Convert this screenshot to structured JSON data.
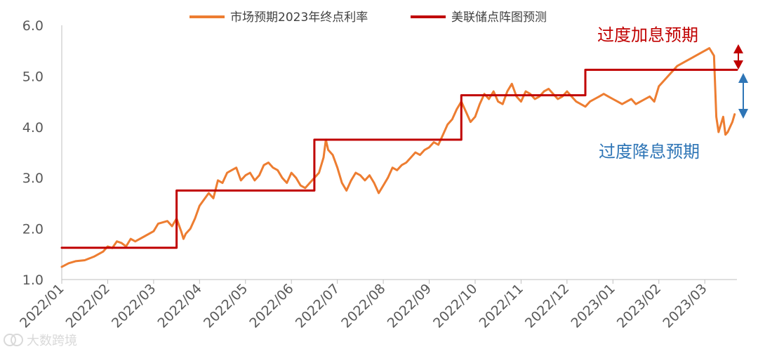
{
  "chart_data": {
    "type": "line",
    "legend": {
      "position": "top",
      "items": [
        {
          "name": "市场预期2023年终点利率",
          "color": "#ed7d31",
          "style": "line"
        },
        {
          "name": "美联储点阵图预测",
          "color": "#c00000",
          "style": "step"
        }
      ]
    },
    "ylim": [
      1.0,
      6.0
    ],
    "yticks": [
      "1.0",
      "2.0",
      "3.0",
      "4.0",
      "5.0",
      "6.0"
    ],
    "xlim": [
      0,
      14.7
    ],
    "xticks": [
      "2022/01",
      "2022/02",
      "2022/03",
      "2022/04",
      "2022/05",
      "2022/06",
      "2022/07",
      "2022/08",
      "2022/09",
      "2022/10",
      "2022/11",
      "2022/12",
      "2023/01",
      "2023/02",
      "2023/03"
    ],
    "series": [
      {
        "name": "市场预期2023年终点利率",
        "color": "#ed7d31",
        "x": [
          0,
          0.15,
          0.3,
          0.5,
          0.7,
          0.9,
          1.0,
          1.1,
          1.2,
          1.3,
          1.4,
          1.5,
          1.6,
          1.8,
          2.0,
          2.1,
          2.3,
          2.4,
          2.5,
          2.6,
          2.65,
          2.7,
          2.8,
          2.9,
          3.0,
          3.2,
          3.3,
          3.4,
          3.5,
          3.6,
          3.7,
          3.8,
          3.9,
          4.0,
          4.1,
          4.2,
          4.3,
          4.4,
          4.5,
          4.6,
          4.7,
          4.8,
          4.9,
          5.0,
          5.1,
          5.2,
          5.3,
          5.4,
          5.5,
          5.6,
          5.7,
          5.75,
          5.8,
          5.9,
          6.0,
          6.1,
          6.2,
          6.3,
          6.4,
          6.5,
          6.6,
          6.7,
          6.8,
          6.9,
          7.0,
          7.1,
          7.2,
          7.3,
          7.4,
          7.5,
          7.6,
          7.7,
          7.8,
          7.9,
          8.0,
          8.1,
          8.2,
          8.3,
          8.4,
          8.5,
          8.6,
          8.7,
          8.8,
          8.9,
          9.0,
          9.1,
          9.2,
          9.3,
          9.4,
          9.5,
          9.6,
          9.7,
          9.8,
          9.9,
          10.0,
          10.1,
          10.2,
          10.3,
          10.4,
          10.5,
          10.6,
          10.7,
          10.8,
          10.9,
          11.0,
          11.1,
          11.2,
          11.3,
          11.4,
          11.5,
          11.6,
          11.7,
          11.8,
          11.9,
          12.0,
          12.1,
          12.2,
          12.3,
          12.4,
          12.5,
          12.6,
          12.7,
          12.8,
          12.9,
          13.0,
          13.1,
          13.2,
          13.3,
          13.4,
          13.5,
          13.6,
          13.7,
          13.8,
          13.9,
          14.0,
          14.1,
          14.2,
          14.25,
          14.3,
          14.35,
          14.4,
          14.45,
          14.5,
          14.55,
          14.6,
          14.65
        ],
        "y": [
          1.25,
          1.32,
          1.36,
          1.38,
          1.45,
          1.55,
          1.65,
          1.62,
          1.75,
          1.72,
          1.65,
          1.8,
          1.75,
          1.85,
          1.95,
          2.1,
          2.15,
          2.05,
          2.2,
          1.95,
          1.8,
          1.9,
          2.0,
          2.2,
          2.45,
          2.7,
          2.6,
          2.95,
          2.9,
          3.1,
          3.15,
          3.2,
          2.95,
          3.05,
          3.1,
          2.95,
          3.05,
          3.25,
          3.3,
          3.2,
          3.15,
          3.0,
          2.9,
          3.1,
          3.0,
          2.85,
          2.8,
          2.9,
          3.0,
          3.1,
          3.4,
          3.75,
          3.55,
          3.45,
          3.2,
          2.9,
          2.75,
          2.95,
          3.1,
          3.05,
          2.95,
          3.05,
          2.9,
          2.7,
          2.85,
          3.0,
          3.2,
          3.15,
          3.25,
          3.3,
          3.4,
          3.5,
          3.45,
          3.55,
          3.6,
          3.7,
          3.65,
          3.85,
          4.05,
          4.15,
          4.35,
          4.5,
          4.3,
          4.1,
          4.2,
          4.45,
          4.65,
          4.55,
          4.7,
          4.5,
          4.45,
          4.7,
          4.85,
          4.6,
          4.5,
          4.7,
          4.65,
          4.55,
          4.6,
          4.7,
          4.75,
          4.65,
          4.55,
          4.6,
          4.7,
          4.6,
          4.5,
          4.45,
          4.4,
          4.5,
          4.55,
          4.6,
          4.65,
          4.6,
          4.55,
          4.5,
          4.45,
          4.5,
          4.55,
          4.45,
          4.5,
          4.55,
          4.6,
          4.5,
          4.8,
          4.9,
          5.0,
          5.1,
          5.2,
          5.25,
          5.3,
          5.35,
          5.4,
          5.45,
          5.5,
          5.55,
          5.4,
          4.2,
          3.9,
          4.05,
          4.2,
          3.85,
          3.9,
          4.0,
          4.1,
          4.25
        ]
      },
      {
        "name": "美联储点阵图预测",
        "color": "#c00000",
        "x": [
          0,
          2.5,
          2.5,
          5.5,
          5.5,
          8.7,
          8.7,
          11.4,
          11.4,
          14.7
        ],
        "y": [
          1.625,
          1.625,
          2.75,
          2.75,
          3.75,
          3.75,
          4.625,
          4.625,
          5.125,
          5.125
        ]
      }
    ],
    "annotations": [
      {
        "text": "过度加息预期",
        "color": "#c00000"
      },
      {
        "text": "过度降息预期",
        "color": "#2e75b6"
      }
    ],
    "watermark": "大数跨境"
  }
}
